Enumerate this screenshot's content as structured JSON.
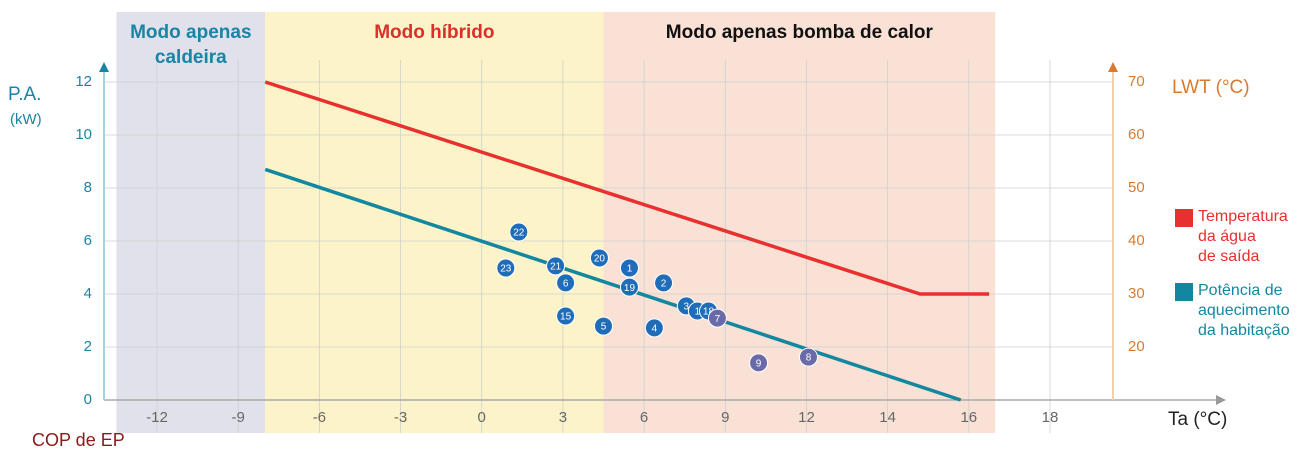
{
  "chart_data": {
    "type": "scatter",
    "regions": [
      {
        "name": "Modo apenas\ncaldeira",
        "from": -13.5,
        "to": -8,
        "color": "#e1e1eb",
        "text_color": "#1a84a4"
      },
      {
        "name": "Modo híbrido",
        "from": -8,
        "to": 4.5,
        "color": "#fdf3c9",
        "text_color": "#d9302b"
      },
      {
        "name": "Modo apenas bomba de calor",
        "from": 4.5,
        "to": 16.65,
        "color": "#f9e1d6",
        "text_color": "#111111"
      }
    ],
    "ylabel": "P.A.",
    "yunit": "(kW)",
    "y2label": "LWT (°C)",
    "xlabel": "Ta (°C)",
    "footer": "COP de EP",
    "xticks": [
      -12,
      -9,
      -6,
      -3,
      0,
      3,
      6,
      9,
      12,
      14,
      16,
      18
    ],
    "ylim": [
      0,
      12
    ],
    "yticks": [
      0,
      2,
      4,
      6,
      8,
      10,
      12
    ],
    "y2lim": [
      10,
      70
    ],
    "y2ticks": [
      20,
      30,
      40,
      50,
      60,
      70
    ],
    "grid": true,
    "series": [
      {
        "name": "Temperatura\nda água\nde saída",
        "color": "#e8302e",
        "axis": "y2",
        "x": [
          -8,
          14.8,
          16.5
        ],
        "values": [
          70,
          30,
          30
        ]
      },
      {
        "name": "Potência de\naquecimento\nda habitação",
        "color": "#13879f",
        "x": [
          -8,
          15.8
        ],
        "values": [
          8.7,
          0
        ]
      }
    ],
    "points": {
      "labels": [
        "22",
        "23",
        "21",
        "6",
        "20",
        "1",
        "19",
        "2",
        "15",
        "5",
        "4",
        "3",
        "1",
        "18",
        "7",
        "9",
        "8"
      ],
      "x": [
        1.37,
        0.89,
        2.73,
        3.1,
        4.35,
        5.46,
        5.46,
        6.72,
        3.1,
        4.5,
        6.38,
        7.56,
        7.97,
        8.38,
        8.71,
        10.23,
        12.05
      ],
      "y": [
        6.34,
        4.98,
        5.06,
        4.42,
        5.36,
        4.98,
        4.26,
        4.42,
        3.17,
        2.79,
        2.72,
        3.55,
        3.36,
        3.36,
        3.09,
        1.4,
        1.62
      ],
      "colors": [
        "#1f6db8",
        "#1f6db8",
        "#1f6db8",
        "#1f6db8",
        "#1f6db8",
        "#1f6db8",
        "#1f6db8",
        "#1f6db8",
        "#1f6db8",
        "#1f6db8",
        "#1f6db8",
        "#1f6db8",
        "#1f6db8",
        "#1f6db8",
        "#6b6aa9",
        "#6b6aa9",
        "#6b6aa9"
      ]
    }
  }
}
